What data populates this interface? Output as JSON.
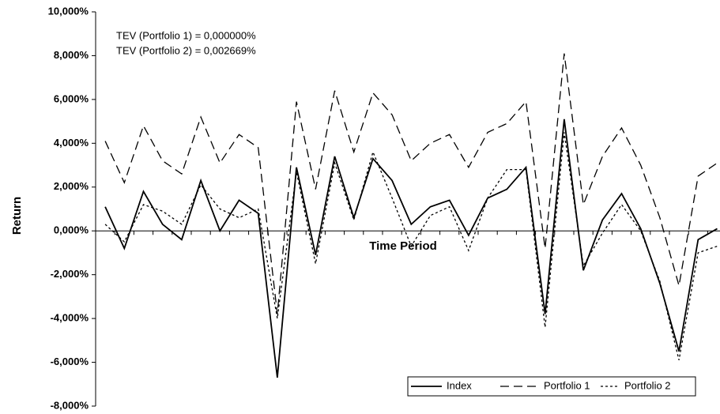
{
  "chart_data": {
    "type": "line",
    "ylabel": "Return",
    "xlabel": "Time Period",
    "annotations": [
      "TEV (Portfolio 1) = 0,000000%",
      "TEV (Portfolio 2) = 0,002669%"
    ],
    "categories": [
      null,
      null,
      null,
      null,
      null,
      null,
      null,
      null,
      null,
      null,
      null,
      null,
      null,
      null,
      null,
      null,
      null,
      null,
      null,
      null,
      null,
      null,
      null,
      null,
      null,
      null,
      null,
      null,
      null,
      null,
      null,
      null,
      null
    ],
    "series": [
      {
        "name": "Index",
        "color": "#000000",
        "dash": "solid",
        "values": [
          1.1,
          -0.8,
          1.8,
          0.3,
          -0.4,
          2.3,
          0.0,
          1.4,
          0.8,
          -6.7,
          2.9,
          -1.1,
          3.4,
          0.6,
          3.3,
          2.3,
          0.3,
          1.1,
          1.4,
          -0.2,
          1.5,
          1.9,
          2.9,
          -3.8,
          5.1,
          -1.8,
          0.5,
          1.7,
          0.1,
          -2.4,
          -5.5,
          -0.4,
          0.1
        ]
      },
      {
        "name": "Portfolio 1",
        "color": "#000000",
        "dash": "dashed",
        "values": [
          4.1,
          2.2,
          4.8,
          3.2,
          2.6,
          5.2,
          3.1,
          4.4,
          3.8,
          -3.8,
          5.9,
          1.9,
          6.4,
          3.6,
          6.3,
          5.3,
          3.2,
          4.0,
          4.4,
          2.9,
          4.5,
          4.9,
          5.9,
          -0.8,
          8.1,
          1.2,
          3.4,
          4.7,
          3.0,
          0.6,
          -2.5,
          2.5,
          3.1
        ]
      },
      {
        "name": "Portfolio 2",
        "color": "#000000",
        "dash": "dotted",
        "values": [
          0.3,
          -0.5,
          1.2,
          0.9,
          0.3,
          2.1,
          1.0,
          0.6,
          1.0,
          -4.0,
          2.7,
          -1.5,
          3.1,
          0.5,
          3.6,
          1.5,
          -0.7,
          0.7,
          1.1,
          -0.9,
          1.5,
          2.8,
          2.8,
          -4.4,
          4.5,
          -1.6,
          -0.1,
          1.2,
          0.0,
          -2.3,
          -5.9,
          -1.0,
          -0.7
        ]
      }
    ],
    "ylim": [
      -8,
      10
    ],
    "yticks": [
      {
        "value": -8,
        "label": "-8,000%"
      },
      {
        "value": -6,
        "label": "-6,000%"
      },
      {
        "value": -4,
        "label": "-4,000%"
      },
      {
        "value": -2,
        "label": "-2,000%"
      },
      {
        "value": 0,
        "label": "0,000%"
      },
      {
        "value": 2,
        "label": "2,000%"
      },
      {
        "value": 4,
        "label": "4,000%"
      },
      {
        "value": 6,
        "label": "6,000%"
      },
      {
        "value": 8,
        "label": "8,000%"
      },
      {
        "value": 10,
        "label": "10,000%"
      }
    ],
    "grid": false,
    "legend": "lower right"
  }
}
